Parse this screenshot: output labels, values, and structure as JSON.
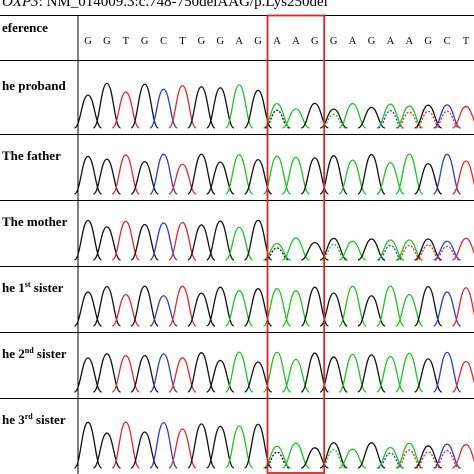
{
  "caption": {
    "gene_fragment": "OXP3",
    "rest": ": NM_014009.3:c.748-750delAAG/p.Lys250del"
  },
  "reference": {
    "label": "eference",
    "bases": [
      "G",
      "G",
      "T",
      "G",
      "C",
      "T",
      "G",
      "G",
      "A",
      "G",
      "A",
      "A",
      "G",
      "G",
      "A",
      "G",
      "A",
      "A",
      "G",
      "C",
      "T"
    ]
  },
  "deleted_positions": [
    10,
    11,
    12
  ],
  "rows": [
    {
      "label": "he proband",
      "superscript": "",
      "suffix": "",
      "status": "deletion"
    },
    {
      "label": "The father",
      "superscript": "",
      "suffix": "",
      "status": "normal"
    },
    {
      "label": "The mother",
      "superscript": "",
      "suffix": "",
      "status": "deletion"
    },
    {
      "label": "he 1",
      "superscript": "st",
      "suffix": " sister",
      "status": "normal"
    },
    {
      "label": "he 2",
      "superscript": "nd",
      "suffix": " sister",
      "status": "normal"
    },
    {
      "label": "he 3",
      "superscript": "rd",
      "suffix": " sister",
      "status": "deletion"
    }
  ],
  "colors": {
    "A": "#22c02a",
    "C": "#2a3ed6",
    "G": "#111111",
    "T": "#e02a2a",
    "highlight_box": "#d42828"
  }
}
